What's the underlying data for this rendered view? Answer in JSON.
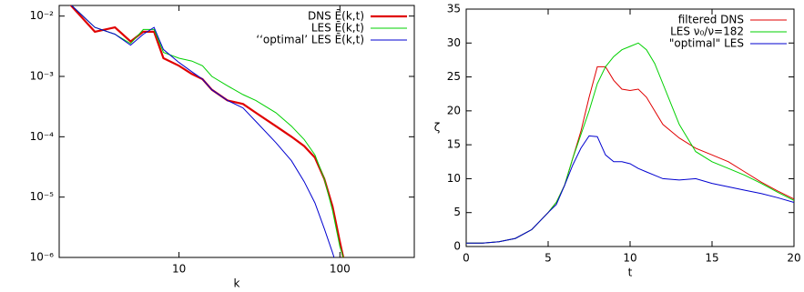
{
  "chart_data": [
    {
      "type": "line",
      "xlabel": "k",
      "xlog": true,
      "ylog": true,
      "xlim": [
        1.8,
        290
      ],
      "ylim": [
        1e-06,
        0.015
      ],
      "xticks": [
        10,
        100
      ],
      "yticks": [
        {
          "value": 1e-06,
          "label": "10⁻⁶"
        },
        {
          "value": 1e-05,
          "label": "10⁻⁵"
        },
        {
          "value": 0.0001,
          "label": "10⁻⁴"
        },
        {
          "value": 0.001,
          "label": "10⁻³"
        },
        {
          "value": 0.01,
          "label": "10⁻²"
        }
      ],
      "legend": "top right",
      "x": [
        2,
        3,
        4,
        5,
        6,
        7,
        8,
        10,
        12,
        14,
        16,
        20,
        25,
        30,
        40,
        50,
        60,
        70,
        80,
        90,
        100,
        105
      ],
      "series": [
        {
          "name": "DNS Ē(k,t)",
          "color": "#e00000",
          "values": [
            0.018,
            0.0055,
            0.0065,
            0.0038,
            0.0055,
            0.0055,
            0.002,
            0.0015,
            0.0011,
            0.0009,
            0.0006,
            0.0004,
            0.00035,
            0.00025,
            0.00015,
            0.0001,
            7e-05,
            4.5e-05,
            2e-05,
            7e-06,
            1.8e-06,
            1e-06
          ]
        },
        {
          "name": "LES Ē(k,t)",
          "color": "#00d000",
          "values": [
            0.018,
            0.0065,
            0.005,
            0.0035,
            0.006,
            0.006,
            0.0025,
            0.002,
            0.0018,
            0.0015,
            0.001,
            0.0007,
            0.0005,
            0.0004,
            0.00025,
            0.00015,
            9e-05,
            5e-05,
            2e-05,
            6e-06,
            1.5e-06,
            1e-06
          ]
        },
        {
          "name": "‘‘optimal’ LES Ē(k,t)",
          "color": "#0000d0",
          "values": [
            0.018,
            0.0065,
            0.005,
            0.0033,
            0.005,
            0.0065,
            0.0028,
            0.0017,
            0.0012,
            0.0009,
            0.0006,
            0.0004,
            0.0003,
            0.00018,
            8e-05,
            4e-05,
            1.8e-05,
            8e-06,
            3e-06,
            1.2e-06,
            5e-07,
            null
          ]
        }
      ]
    },
    {
      "type": "line",
      "xlabel": "t",
      "ylabel": "ζ",
      "xlog": false,
      "ylog": false,
      "xlim": [
        0,
        20
      ],
      "ylim": [
        0,
        35
      ],
      "xticks": [
        0,
        5,
        10,
        15,
        20
      ],
      "yticks": [
        0,
        5,
        10,
        15,
        20,
        25,
        30,
        35
      ],
      "legend": "top right",
      "x": [
        0,
        1,
        2,
        3,
        4,
        5,
        5.5,
        6,
        6.5,
        7,
        7.5,
        8,
        8.5,
        9,
        9.5,
        10,
        10.5,
        11,
        11.5,
        12,
        13,
        14,
        15,
        16,
        17,
        18,
        19,
        20
      ],
      "series": [
        {
          "name": "filtered DNS",
          "color": "#e00000",
          "values": [
            0.5,
            0.5,
            0.7,
            1.2,
            2.5,
            5,
            6.5,
            9,
            13,
            17,
            22,
            26.5,
            26.5,
            24.5,
            23.2,
            23,
            23.2,
            22,
            20,
            18,
            16,
            14.5,
            13.5,
            12.5,
            11,
            9.5,
            8.2,
            7
          ]
        },
        {
          "name": "LES ν₀/ν=182",
          "color": "#00d000",
          "values": [
            0.5,
            0.5,
            0.7,
            1.2,
            2.5,
            5,
            6.5,
            9,
            13,
            16.5,
            20,
            24,
            26.5,
            28,
            29,
            29.5,
            30,
            29,
            27,
            24,
            18,
            14,
            12.5,
            11.5,
            10.5,
            9.3,
            8,
            6.8
          ]
        },
        {
          "name": "\"optimal\" LES",
          "color": "#0000d0",
          "values": [
            0.5,
            0.5,
            0.7,
            1.2,
            2.5,
            5,
            6.2,
            9,
            12,
            14.5,
            16.3,
            16.2,
            13.5,
            12.5,
            12.5,
            12.2,
            11.5,
            11,
            10.5,
            10,
            9.8,
            10,
            9.3,
            8.8,
            8.3,
            7.8,
            7.2,
            6.5
          ]
        }
      ]
    }
  ]
}
